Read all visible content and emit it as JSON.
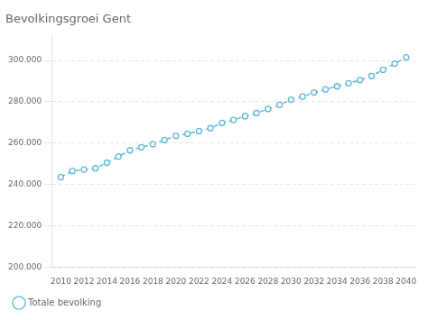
{
  "chart_data": {
    "type": "line",
    "title": "Bevolkingsgroei Gent",
    "x": [
      2010,
      2011,
      2012,
      2013,
      2014,
      2015,
      2016,
      2017,
      2018,
      2019,
      2020,
      2021,
      2022,
      2023,
      2024,
      2025,
      2026,
      2027,
      2028,
      2029,
      2030,
      2031,
      2032,
      2033,
      2034,
      2035,
      2036,
      2037,
      2038,
      2039,
      2040
    ],
    "series": [
      {
        "name": "Totale bevolking",
        "color": "#5bb8d4",
        "values": [
          243500,
          246500,
          247200,
          247800,
          250500,
          253500,
          256500,
          258000,
          259500,
          261500,
          263500,
          264500,
          265800,
          267200,
          269800,
          271200,
          273000,
          274500,
          276500,
          278500,
          281000,
          282500,
          284500,
          286000,
          287500,
          289000,
          290500,
          292500,
          295500,
          298500,
          301500
        ],
        "marker": "circle",
        "line_style": "dashed"
      }
    ],
    "xlim": [
      2009.2,
      2040.8
    ],
    "xticks": [
      2010,
      2012,
      2014,
      2016,
      2018,
      2020,
      2022,
      2024,
      2026,
      2028,
      2030,
      2032,
      2034,
      2036,
      2038,
      2040
    ],
    "ylim": [
      200000,
      312000
    ],
    "yticks": [
      {
        "value": 200000,
        "label": "200.000"
      },
      {
        "value": 220000,
        "label": "220.000"
      },
      {
        "value": 240000,
        "label": "240.000"
      },
      {
        "value": 260000,
        "label": "260.000"
      },
      {
        "value": 280000,
        "label": "280.000"
      },
      {
        "value": 300000,
        "label": "300.000"
      }
    ],
    "grid": "y",
    "legend": "bottom"
  }
}
